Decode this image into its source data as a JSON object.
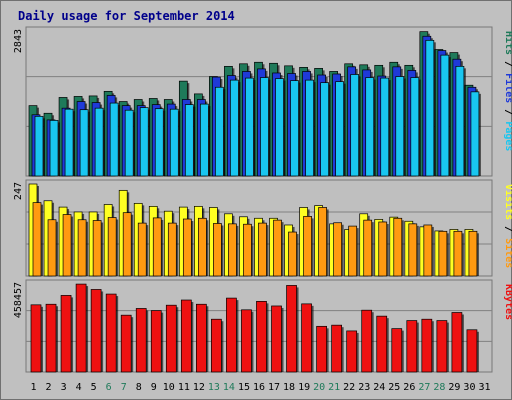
{
  "title": "Daily usage for September 2014",
  "colors": {
    "background": "#c0c0c0",
    "panel": "#bfbfbf",
    "gridline": "#808080",
    "hits": "#1f7a5a",
    "files": "#1f3ad8",
    "pages": "#19c6f0",
    "visits": "#ffff22",
    "sites": "#ff9a11",
    "kbytes": "#ee1111",
    "title": "#00008b",
    "weekend_day": "#1f7a5a",
    "weekday_day": "#000000"
  },
  "chart_data": [
    {
      "type": "bar",
      "name": "hits-files-pages",
      "ylabel_parts": [
        "Pages",
        "Files",
        "Hits"
      ],
      "ymax_label": "2843",
      "ylim": [
        0,
        2843
      ],
      "categories": [
        "1",
        "2",
        "3",
        "4",
        "5",
        "6",
        "7",
        "8",
        "9",
        "10",
        "11",
        "12",
        "13",
        "14",
        "15",
        "16",
        "17",
        "18",
        "19",
        "20",
        "21",
        "22",
        "23",
        "24",
        "25",
        "26",
        "27",
        "28",
        "29",
        "30",
        "31"
      ],
      "series": [
        {
          "name": "Hits",
          "values": [
            1380,
            1230,
            1540,
            1560,
            1570,
            1660,
            1460,
            1500,
            1520,
            1500,
            1860,
            1610,
            1950,
            2150,
            2200,
            2230,
            2210,
            2160,
            2130,
            2110,
            2050,
            2200,
            2180,
            2170,
            2230,
            2170,
            2830,
            2480,
            2420,
            1780,
            0
          ]
        },
        {
          "name": "Files",
          "values": [
            1200,
            1100,
            1330,
            1460,
            1440,
            1580,
            1380,
            1380,
            1400,
            1410,
            1500,
            1500,
            1940,
            1970,
            2050,
            2100,
            2020,
            2010,
            2050,
            1980,
            2000,
            2140,
            2080,
            1960,
            2140,
            2070,
            2740,
            2460,
            2290,
            1740,
            0
          ]
        },
        {
          "name": "Pages",
          "values": [
            1170,
            1090,
            1310,
            1300,
            1330,
            1430,
            1290,
            1340,
            1320,
            1310,
            1400,
            1410,
            1740,
            1880,
            1920,
            1930,
            1910,
            1870,
            1880,
            1830,
            1850,
            1990,
            1930,
            1920,
            1950,
            1930,
            2660,
            2370,
            2150,
            1650,
            0
          ]
        }
      ]
    },
    {
      "type": "bar",
      "name": "visits-sites",
      "ylabel_parts": [
        "Sites",
        "Visits"
      ],
      "ymax_label": "247",
      "ylim": [
        0,
        247
      ],
      "categories": [
        "1",
        "2",
        "3",
        "4",
        "5",
        "6",
        "7",
        "8",
        "9",
        "10",
        "11",
        "12",
        "13",
        "14",
        "15",
        "16",
        "17",
        "18",
        "19",
        "20",
        "21",
        "22",
        "23",
        "24",
        "25",
        "26",
        "27",
        "28",
        "29",
        "30",
        "31"
      ],
      "series": [
        {
          "name": "Visits",
          "values": [
            247,
            202,
            185,
            172,
            172,
            192,
            230,
            195,
            187,
            174,
            185,
            187,
            184,
            167,
            159,
            155,
            155,
            137,
            184,
            189,
            140,
            125,
            167,
            152,
            158,
            147,
            132,
            121,
            125,
            125,
            0
          ]
        },
        {
          "name": "Sites",
          "values": [
            197,
            151,
            165,
            151,
            149,
            157,
            170,
            142,
            156,
            142,
            153,
            155,
            141,
            140,
            139,
            142,
            150,
            118,
            160,
            184,
            143,
            134,
            150,
            145,
            155,
            140,
            137,
            120,
            120,
            120,
            0
          ]
        }
      ]
    },
    {
      "type": "bar",
      "name": "kbytes",
      "ylabel_parts": [
        "KBytes"
      ],
      "ymax_label": "458457",
      "ylim": [
        0,
        458457
      ],
      "categories": [
        "1",
        "2",
        "3",
        "4",
        "5",
        "6",
        "7",
        "8",
        "9",
        "10",
        "11",
        "12",
        "13",
        "14",
        "15",
        "16",
        "17",
        "18",
        "19",
        "20",
        "21",
        "22",
        "23",
        "24",
        "25",
        "26",
        "27",
        "28",
        "29",
        "30",
        "31"
      ],
      "series": [
        {
          "name": "KBytes",
          "values": [
            350000,
            353000,
            399000,
            458000,
            430000,
            406000,
            296000,
            331000,
            320000,
            348000,
            375000,
            353000,
            275000,
            385000,
            324000,
            368000,
            344000,
            451000,
            355000,
            238000,
            244000,
            214000,
            322000,
            291000,
            226000,
            268000,
            275000,
            268000,
            310000,
            220000,
            0
          ]
        }
      ]
    }
  ],
  "days": [
    "1",
    "2",
    "3",
    "4",
    "5",
    "6",
    "7",
    "8",
    "9",
    "10",
    "11",
    "12",
    "13",
    "14",
    "15",
    "16",
    "17",
    "18",
    "19",
    "20",
    "21",
    "22",
    "23",
    "24",
    "25",
    "26",
    "27",
    "28",
    "29",
    "30",
    "31"
  ],
  "weekend_days": [
    "6",
    "7",
    "13",
    "14",
    "20",
    "21",
    "27",
    "28"
  ]
}
